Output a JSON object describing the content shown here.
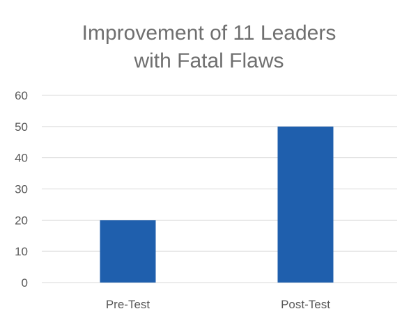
{
  "chart_data": {
    "type": "bar",
    "title_lines": [
      "Improvement of 11 Leaders",
      "with Fatal Flaws"
    ],
    "title": "Improvement of 11 Leaders with Fatal Flaws",
    "xlabel": "",
    "ylabel": "",
    "categories": [
      "Pre-Test",
      "Post-Test"
    ],
    "values": [
      20,
      50
    ],
    "ylim": [
      0,
      60
    ],
    "yticks": [
      0,
      10,
      20,
      30,
      40,
      50,
      60
    ],
    "grid": true,
    "legend": "none",
    "bar_color": "#1f5fad",
    "grid_color": "#d9d9d9",
    "text_color": "#595959",
    "title_color": "#6f6f6f"
  }
}
